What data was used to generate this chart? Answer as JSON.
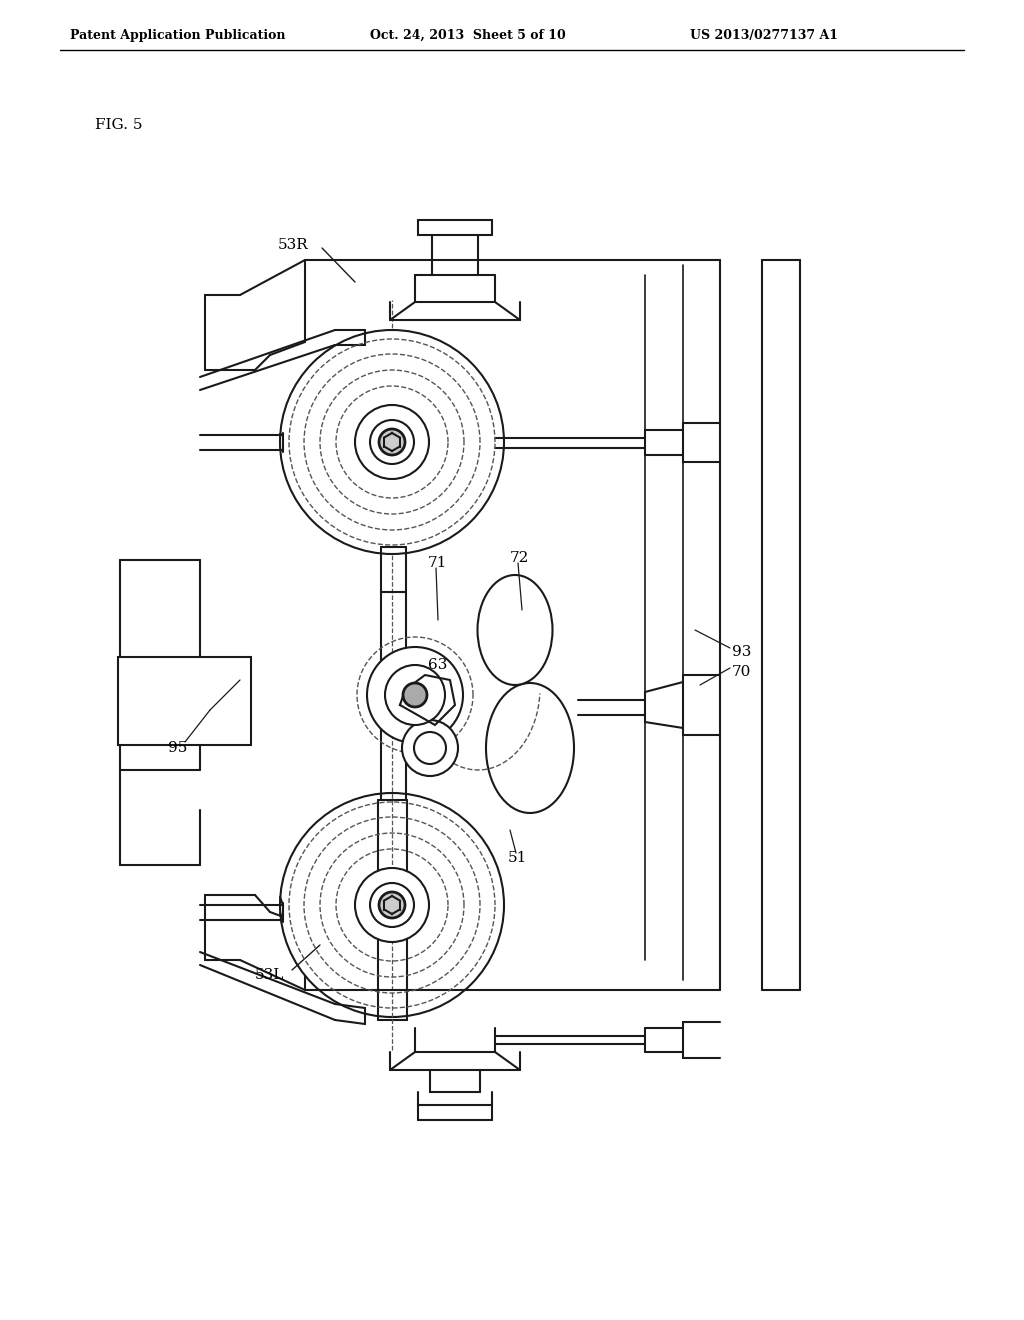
{
  "header_left": "Patent Application Publication",
  "header_mid": "Oct. 24, 2013  Sheet 5 of 10",
  "header_right": "US 2013/0277137 A1",
  "fig_label": "FIG. 5",
  "bg_color": "#ffffff",
  "line_color": "#1a1a1a",
  "dashed_color": "#555555"
}
